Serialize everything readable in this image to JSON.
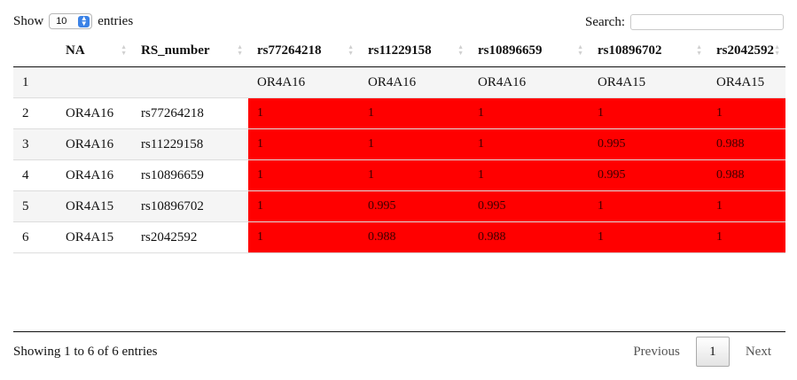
{
  "controls": {
    "show_label": "Show",
    "length_value": "10",
    "entries_label": "entries",
    "search_label": "Search:",
    "search_value": ""
  },
  "table": {
    "headers": [
      "",
      "NA",
      "RS_number",
      "rs77264218",
      "rs11229158",
      "rs10896659",
      "rs10896702",
      "rs2042592"
    ],
    "rows": [
      [
        "1",
        "",
        "",
        "OR4A16",
        "OR4A16",
        "OR4A16",
        "OR4A15",
        "OR4A15"
      ],
      [
        "2",
        "OR4A16",
        "rs77264218",
        "1",
        "1",
        "1",
        "1",
        "1"
      ],
      [
        "3",
        "OR4A16",
        "rs11229158",
        "1",
        "1",
        "1",
        "0.995",
        "0.988"
      ],
      [
        "4",
        "OR4A16",
        "rs10896659",
        "1",
        "1",
        "1",
        "0.995",
        "0.988"
      ],
      [
        "5",
        "OR4A15",
        "rs10896702",
        "1",
        "0.995",
        "0.995",
        "1",
        "1"
      ],
      [
        "6",
        "OR4A15",
        "rs2042592",
        "1",
        "0.988",
        "0.988",
        "1",
        "1"
      ]
    ],
    "highlight_color": "#ff0000"
  },
  "footer": {
    "info": "Showing 1 to 6 of 6 entries",
    "previous_label": "Previous",
    "current_page": "1",
    "next_label": "Next"
  }
}
